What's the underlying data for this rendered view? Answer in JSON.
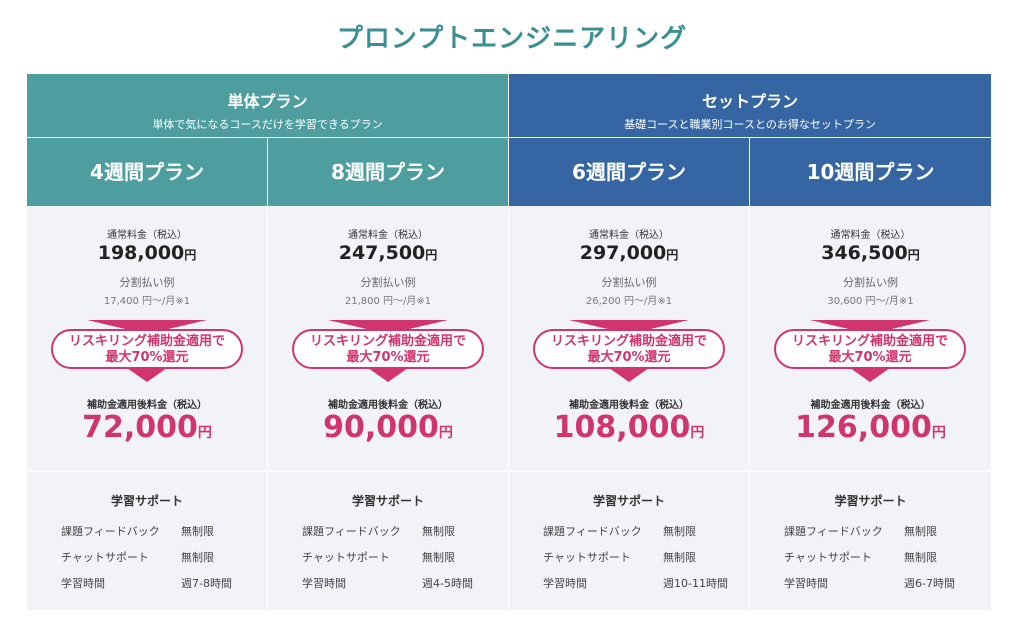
{
  "title": "プロンプトエンジニアリング",
  "groups": {
    "single": {
      "name": "単体プラン",
      "sub": "単体で気になるコースだけを学習できるプラン"
    },
    "set": {
      "name": "セットプラン",
      "sub": "基礎コースと職業別コースとのお得なセットプラン"
    }
  },
  "labels": {
    "regular": "通常料金（税込）",
    "split": "分割払い例",
    "after": "補助金適用後料金（税込）",
    "yen": "円",
    "pill_line1": "リスキリング補助金適用で",
    "pill_line2": "最大70%還元",
    "support_heading": "学習サポート",
    "feedback": "課題フィードバック",
    "chat": "チャットサポート",
    "hours": "学習時間"
  },
  "plans": [
    {
      "name": "4週間プラン",
      "regular_price": "198,000",
      "split": "17,400 円〜/月※1",
      "after_price": "72,000",
      "feedback": "無制限",
      "chat": "無制限",
      "hours": "週7-8時間"
    },
    {
      "name": "8週間プラン",
      "regular_price": "247,500",
      "split": "21,800 円〜/月※1",
      "after_price": "90,000",
      "feedback": "無制限",
      "chat": "無制限",
      "hours": "週4-5時間"
    },
    {
      "name": "6週間プラン",
      "regular_price": "297,000",
      "split": "26,200 円〜/月※1",
      "after_price": "108,000",
      "feedback": "無制限",
      "chat": "無制限",
      "hours": "週10-11時間"
    },
    {
      "name": "10週間プラン",
      "regular_price": "346,500",
      "split": "30,600 円〜/月※1",
      "after_price": "126,000",
      "feedback": "無制限",
      "chat": "無制限",
      "hours": "週6-7時間"
    }
  ],
  "colors": {
    "teal": "#4e9ea0",
    "blue": "#3566a3",
    "accent": "#d0356d",
    "title": "#3b8f93"
  }
}
